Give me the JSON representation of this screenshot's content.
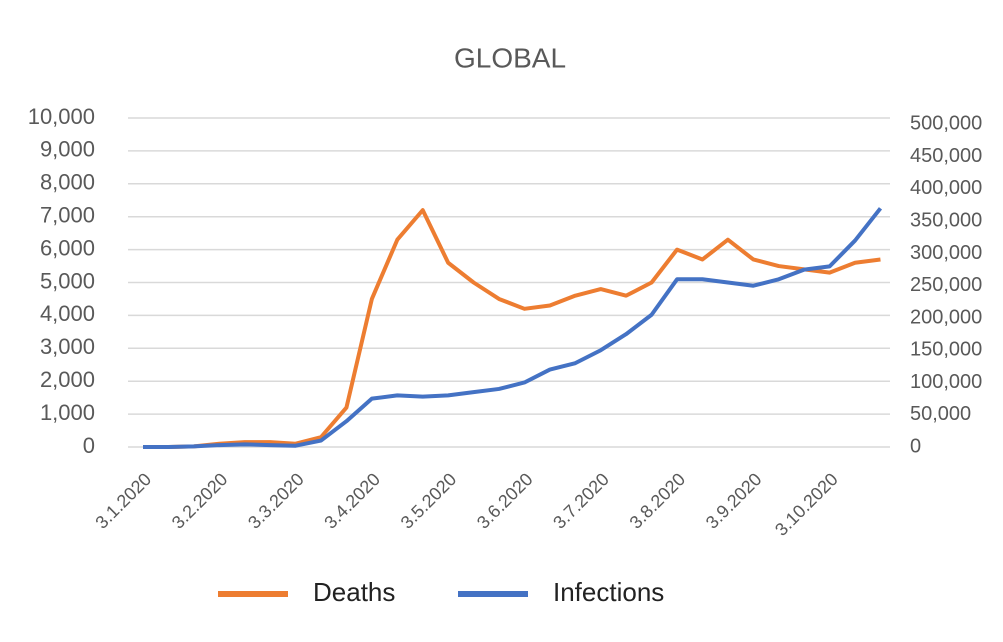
{
  "chart_data": {
    "type": "line",
    "title": "GLOBAL",
    "categories": [
      "3.1.2020",
      null,
      null,
      "3.2.2020",
      null,
      null,
      "3.3.2020",
      null,
      null,
      "3.4.2020",
      null,
      null,
      "3.5.2020",
      null,
      null,
      "3.6.2020",
      null,
      null,
      "3.7.2020",
      null,
      null,
      "3.8.2020",
      null,
      null,
      "3.9.2020",
      null,
      null,
      "3.10.2020",
      null,
      null
    ],
    "series": [
      {
        "name": "Deaths",
        "color": "#ed7d31",
        "axis": "y",
        "values": [
          0,
          0,
          20,
          100,
          150,
          150,
          100,
          300,
          1200,
          4500,
          6300,
          7200,
          5600,
          5000,
          4500,
          4200,
          4300,
          4600,
          4800,
          4600,
          5000,
          6000,
          5700,
          6300,
          5700,
          5500,
          5400,
          5300,
          5600,
          5700
        ]
      },
      {
        "name": "Infections",
        "color": "#4472c4",
        "axis": "y2",
        "values": [
          0,
          0,
          1000,
          3000,
          4000,
          3000,
          2000,
          10000,
          40000,
          75000,
          80000,
          78000,
          80000,
          85000,
          90000,
          100000,
          120000,
          130000,
          150000,
          175000,
          205000,
          260000,
          260000,
          255000,
          250000,
          260000,
          275000,
          280000,
          320000,
          370000
        ]
      }
    ],
    "ylim": [
      0,
      10000
    ],
    "yticks": [
      0,
      {
        "value": 1000,
        "label": "1,000"
      },
      {
        "value": 2000,
        "label": "2,000"
      },
      {
        "value": 3000,
        "label": "3,000"
      },
      {
        "value": 4000,
        "label": "4,000"
      },
      {
        "value": 5000,
        "label": "5,000"
      },
      {
        "value": 6000,
        "label": "6,000"
      },
      {
        "value": 7000,
        "label": "7,000"
      },
      {
        "value": 8000,
        "label": "8,000"
      },
      {
        "value": 9000,
        "label": "9,000"
      },
      {
        "value": 10000,
        "label": "10,000"
      }
    ],
    "y2lim": [
      0,
      510000
    ],
    "y2ticks": [
      0,
      {
        "value": 50000,
        "label": "50,000"
      },
      {
        "value": 100000,
        "label": "100,000"
      },
      {
        "value": 150000,
        "label": "150,000"
      },
      {
        "value": 200000,
        "label": "200,000"
      },
      {
        "value": 250000,
        "label": "250,000"
      },
      {
        "value": 300000,
        "label": "300,000"
      },
      {
        "value": 350000,
        "label": "350,000"
      },
      {
        "value": 400000,
        "label": "400,000"
      },
      {
        "value": 450000,
        "label": "450,000"
      },
      {
        "value": 500000,
        "label": "500,000"
      }
    ],
    "grid": true,
    "legend": "bottom"
  }
}
